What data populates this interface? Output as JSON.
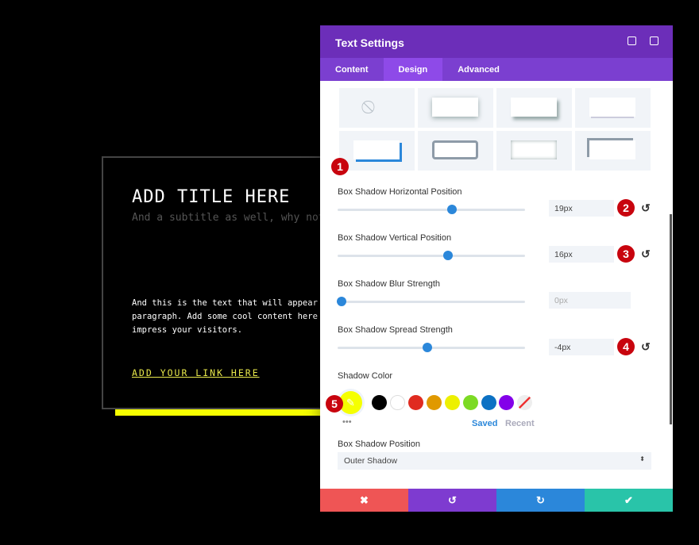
{
  "preview": {
    "title": "ADD TITLE HERE",
    "subtitle": "And a subtitle as well, why not",
    "body": [
      "And this is the text that will appear a",
      "paragraph. Add some cool content here t",
      "impress your visitors."
    ],
    "link": "ADD YOUR LINK HERE",
    "shadow_color": "#f5ff00"
  },
  "panel": {
    "title": "Text Settings",
    "tabs": [
      "Content",
      "Design",
      "Advanced"
    ],
    "active_tab": "Design",
    "fields": [
      {
        "label": "Box Shadow Horizontal Position",
        "value": "19px",
        "percent": 61
      },
      {
        "label": "Box Shadow Vertical Position",
        "value": "16px",
        "percent": 59
      },
      {
        "label": "Box Shadow Blur Strength",
        "value": "0px",
        "percent": 0
      },
      {
        "label": "Box Shadow Spread Strength",
        "value": "-4px",
        "percent": 48
      }
    ],
    "shadow_color_label": "Shadow Color",
    "current_color": "#f5ff00",
    "swatches": [
      "#000000",
      "#ffffff",
      "#e02b20",
      "#e09900",
      "#edf000",
      "#7cda24",
      "#0c71c3",
      "#8300e9"
    ],
    "saved": "Saved",
    "recent": "Recent",
    "position_label": "Box Shadow Position",
    "position_value": "Outer Shadow",
    "badges": [
      "1",
      "2",
      "3",
      "4",
      "5"
    ]
  }
}
